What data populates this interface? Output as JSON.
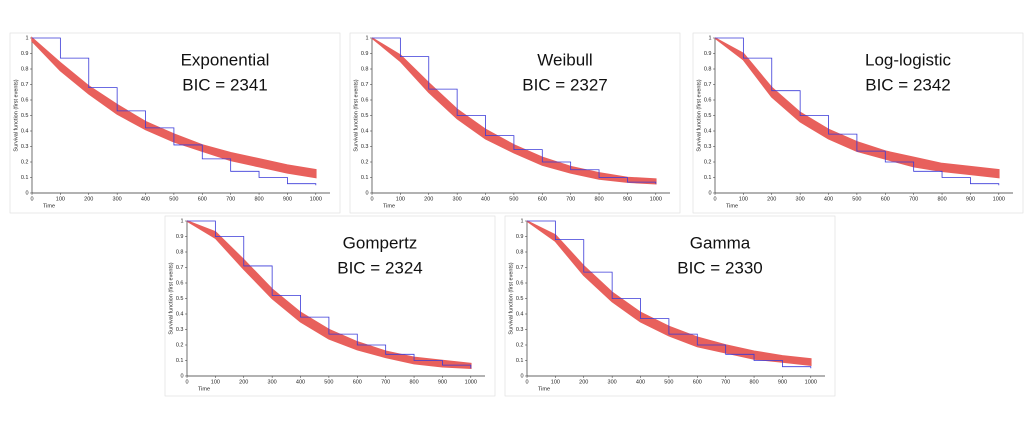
{
  "chart_data": [
    {
      "type": "line",
      "title": "Exponential",
      "subtitle": "BIC = 2341",
      "xlabel": "Time",
      "ylabel": "Survival function (first events)",
      "x": [
        0,
        100,
        200,
        300,
        400,
        500,
        600,
        700,
        800,
        900,
        1000
      ],
      "xlim": [
        0,
        1050
      ],
      "ylim": [
        0,
        1
      ],
      "xticks": [
        0,
        100,
        200,
        300,
        400,
        500,
        600,
        700,
        800,
        900,
        1000
      ],
      "yticks": [
        0,
        0.1,
        0.2,
        0.3,
        0.4,
        0.5,
        0.6,
        0.7,
        0.8,
        0.9,
        1
      ],
      "band": {
        "color": "#e8605c",
        "upper": [
          1,
          0.84,
          0.69,
          0.57,
          0.46,
          0.38,
          0.31,
          0.26,
          0.22,
          0.18,
          0.15
        ],
        "lower": [
          0.98,
          0.79,
          0.64,
          0.51,
          0.41,
          0.33,
          0.27,
          0.21,
          0.17,
          0.13,
          0.1
        ]
      },
      "series": [
        {
          "color": "#3a3ad8",
          "values": [
            1,
            0.87,
            0.68,
            0.53,
            0.42,
            0.31,
            0.22,
            0.14,
            0.1,
            0.06,
            0.05
          ]
        }
      ]
    },
    {
      "type": "line",
      "title": "Weibull",
      "subtitle": "BIC = 2327",
      "xlabel": "Time",
      "ylabel": "Survival function (first events)",
      "x": [
        0,
        100,
        200,
        300,
        400,
        500,
        600,
        700,
        800,
        900,
        1000
      ],
      "xlim": [
        0,
        1050
      ],
      "ylim": [
        0,
        1
      ],
      "xticks": [
        0,
        100,
        200,
        300,
        400,
        500,
        600,
        700,
        800,
        900,
        1000
      ],
      "yticks": [
        0,
        0.1,
        0.2,
        0.3,
        0.4,
        0.5,
        0.6,
        0.7,
        0.8,
        0.9,
        1
      ],
      "band": {
        "color": "#e8605c",
        "upper": [
          1,
          0.89,
          0.71,
          0.54,
          0.41,
          0.31,
          0.23,
          0.17,
          0.13,
          0.1,
          0.09
        ],
        "lower": [
          1,
          0.85,
          0.65,
          0.48,
          0.35,
          0.26,
          0.18,
          0.13,
          0.09,
          0.07,
          0.06
        ]
      },
      "series": [
        {
          "color": "#3a3ad8",
          "values": [
            1,
            0.88,
            0.67,
            0.5,
            0.37,
            0.28,
            0.2,
            0.15,
            0.1,
            0.07,
            0.06
          ]
        }
      ]
    },
    {
      "type": "line",
      "title": "Log-logistic",
      "subtitle": "BIC = 2342",
      "xlabel": "Time",
      "ylabel": "Survival function (first events)",
      "x": [
        0,
        100,
        200,
        300,
        400,
        500,
        600,
        700,
        800,
        900,
        1000
      ],
      "xlim": [
        0,
        1050
      ],
      "ylim": [
        0,
        1
      ],
      "xticks": [
        0,
        100,
        200,
        300,
        400,
        500,
        600,
        700,
        800,
        900,
        1000
      ],
      "yticks": [
        0,
        0.1,
        0.2,
        0.3,
        0.4,
        0.5,
        0.6,
        0.7,
        0.8,
        0.9,
        1
      ],
      "band": {
        "color": "#e8605c",
        "upper": [
          1,
          0.9,
          0.68,
          0.52,
          0.41,
          0.33,
          0.27,
          0.23,
          0.19,
          0.17,
          0.15
        ],
        "lower": [
          1,
          0.86,
          0.62,
          0.46,
          0.35,
          0.27,
          0.22,
          0.17,
          0.14,
          0.12,
          0.1
        ]
      },
      "series": [
        {
          "color": "#3a3ad8",
          "values": [
            1,
            0.87,
            0.66,
            0.5,
            0.38,
            0.27,
            0.2,
            0.14,
            0.1,
            0.06,
            0.05
          ]
        }
      ]
    },
    {
      "type": "line",
      "title": "Gompertz",
      "subtitle": "BIC = 2324",
      "xlabel": "Time",
      "ylabel": "Survival function (first events)",
      "x": [
        0,
        100,
        200,
        300,
        400,
        500,
        600,
        700,
        800,
        900,
        1000
      ],
      "xlim": [
        0,
        1050
      ],
      "ylim": [
        0,
        1
      ],
      "xticks": [
        0,
        100,
        200,
        300,
        400,
        500,
        600,
        700,
        800,
        900,
        1000
      ],
      "yticks": [
        0,
        0.1,
        0.2,
        0.3,
        0.4,
        0.5,
        0.6,
        0.7,
        0.8,
        0.9,
        1
      ],
      "band": {
        "color": "#e8605c",
        "upper": [
          1,
          0.93,
          0.75,
          0.56,
          0.41,
          0.3,
          0.22,
          0.16,
          0.12,
          0.1,
          0.08
        ],
        "lower": [
          1,
          0.89,
          0.69,
          0.5,
          0.35,
          0.24,
          0.17,
          0.12,
          0.08,
          0.06,
          0.05
        ]
      },
      "series": [
        {
          "color": "#3a3ad8",
          "values": [
            1,
            0.9,
            0.71,
            0.52,
            0.38,
            0.27,
            0.2,
            0.14,
            0.1,
            0.07,
            0.05
          ]
        }
      ]
    },
    {
      "type": "line",
      "title": "Gamma",
      "subtitle": "BIC = 2330",
      "xlabel": "Time",
      "ylabel": "Survival function (first events)",
      "x": [
        0,
        100,
        200,
        300,
        400,
        500,
        600,
        700,
        800,
        900,
        1000
      ],
      "xlim": [
        0,
        1050
      ],
      "ylim": [
        0,
        1
      ],
      "xticks": [
        0,
        100,
        200,
        300,
        400,
        500,
        600,
        700,
        800,
        900,
        1000
      ],
      "yticks": [
        0,
        0.1,
        0.2,
        0.3,
        0.4,
        0.5,
        0.6,
        0.7,
        0.8,
        0.9,
        1
      ],
      "band": {
        "color": "#e8605c",
        "upper": [
          1,
          0.91,
          0.71,
          0.54,
          0.41,
          0.32,
          0.25,
          0.2,
          0.16,
          0.13,
          0.11
        ],
        "lower": [
          1,
          0.87,
          0.65,
          0.48,
          0.35,
          0.26,
          0.19,
          0.15,
          0.11,
          0.09,
          0.07
        ]
      },
      "series": [
        {
          "color": "#3a3ad8",
          "values": [
            1,
            0.88,
            0.67,
            0.5,
            0.37,
            0.27,
            0.2,
            0.14,
            0.1,
            0.06,
            0.05
          ]
        }
      ]
    }
  ]
}
